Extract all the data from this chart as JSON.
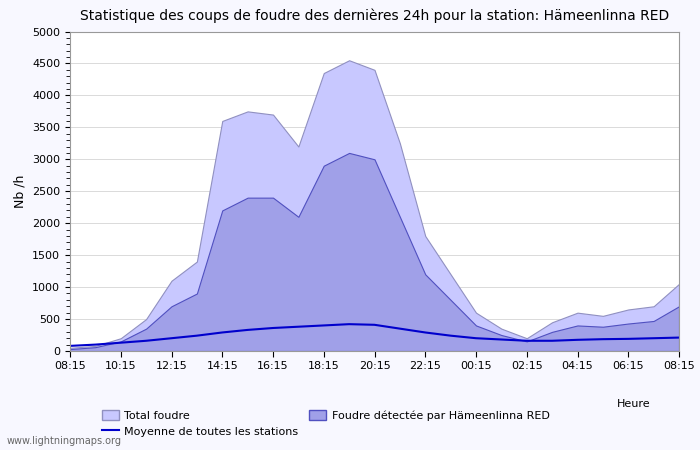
{
  "title": "Statistique des coups de foudre des dernières 24h pour la station: Hämeenlinna RED",
  "xlabel": "Heure",
  "ylabel": "Nb /h",
  "watermark": "www.lightningmaps.org",
  "xtick_labels": [
    "08:15",
    "10:15",
    "12:15",
    "14:15",
    "16:15",
    "18:15",
    "20:15",
    "22:15",
    "00:15",
    "02:15",
    "04:15",
    "06:15",
    "08:15"
  ],
  "ylim": [
    0,
    5000
  ],
  "yticks": [
    0,
    500,
    1000,
    1500,
    2000,
    2500,
    3000,
    3500,
    4000,
    4500,
    5000
  ],
  "background_color": "#f8f8ff",
  "plot_background": "#ffffff",
  "total_foudre_color": "#c8c8ff",
  "total_foudre_edge": "#9090c0",
  "detected_color": "#a0a0e8",
  "detected_edge": "#5050c0",
  "mean_line_color": "#0000cc",
  "legend_total": "Total foudre",
  "legend_mean": "Moyenne de toutes les stations",
  "legend_detected": "Foudre détectée par Hämeenlinna RED",
  "x_positions": [
    0,
    1,
    2,
    3,
    4,
    5,
    6,
    7,
    8,
    9,
    10,
    11,
    12,
    13,
    14,
    15,
    16,
    17,
    18,
    19,
    20,
    21,
    22,
    23,
    24
  ],
  "total_foudre": [
    50,
    80,
    200,
    500,
    1100,
    1400,
    3600,
    3750,
    3700,
    3200,
    4350,
    4550,
    4400,
    3250,
    1800,
    1200,
    600,
    350,
    200,
    450,
    600,
    550,
    650,
    700,
    1050
  ],
  "detected_foudre": [
    30,
    60,
    150,
    350,
    700,
    900,
    2200,
    2400,
    2400,
    2100,
    2900,
    3100,
    3000,
    2100,
    1200,
    800,
    400,
    250,
    150,
    300,
    400,
    380,
    430,
    470,
    700
  ],
  "mean_line": [
    80,
    100,
    130,
    160,
    200,
    240,
    290,
    330,
    360,
    380,
    400,
    420,
    410,
    350,
    290,
    240,
    200,
    180,
    160,
    160,
    175,
    185,
    190,
    200,
    210
  ]
}
